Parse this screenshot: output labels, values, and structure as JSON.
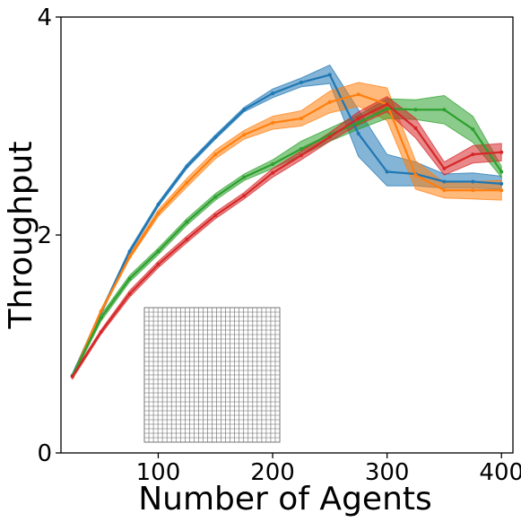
{
  "chart_data": {
    "type": "line",
    "title": "",
    "xlabel": "Number of Agents",
    "ylabel": "Throughput",
    "xlim": [
      15,
      410
    ],
    "ylim": [
      0,
      4
    ],
    "xticks": [
      100,
      200,
      300,
      400
    ],
    "yticks": [
      0,
      2,
      4
    ],
    "grid": false,
    "legend": "none",
    "x": [
      25,
      50,
      75,
      100,
      125,
      150,
      175,
      200,
      225,
      250,
      275,
      300,
      325,
      350,
      375,
      400
    ],
    "series": [
      {
        "color": "#1f77b4",
        "values": [
          0.71,
          1.29,
          1.85,
          2.28,
          2.63,
          2.9,
          3.15,
          3.3,
          3.4,
          3.47,
          2.93,
          2.58,
          2.56,
          2.49,
          2.49,
          2.47
        ],
        "lower": [
          0.69,
          1.27,
          1.83,
          2.26,
          2.61,
          2.88,
          3.13,
          3.26,
          3.36,
          3.39,
          2.72,
          2.45,
          2.45,
          2.43,
          2.43,
          2.42
        ],
        "upper": [
          0.73,
          1.31,
          1.87,
          2.3,
          2.65,
          2.92,
          3.17,
          3.34,
          3.44,
          3.56,
          3.15,
          2.74,
          2.67,
          2.56,
          2.57,
          2.54
        ]
      },
      {
        "color": "#ff7f0e",
        "values": [
          0.7,
          1.3,
          1.8,
          2.2,
          2.48,
          2.74,
          2.92,
          3.03,
          3.07,
          3.22,
          3.29,
          3.2,
          2.55,
          2.41,
          2.41,
          2.41
        ],
        "lower": [
          0.68,
          1.28,
          1.78,
          2.17,
          2.44,
          2.7,
          2.88,
          2.97,
          3.0,
          3.12,
          3.18,
          3.05,
          2.42,
          2.34,
          2.33,
          2.32
        ],
        "upper": [
          0.72,
          1.32,
          1.82,
          2.23,
          2.52,
          2.78,
          2.96,
          3.09,
          3.14,
          3.32,
          3.4,
          3.35,
          2.68,
          2.48,
          2.49,
          2.5
        ]
      },
      {
        "color": "#2ca02c",
        "values": [
          0.71,
          1.24,
          1.6,
          1.85,
          2.12,
          2.35,
          2.53,
          2.65,
          2.79,
          2.92,
          3.03,
          3.16,
          3.15,
          3.15,
          2.97,
          2.58
        ],
        "lower": [
          0.69,
          1.21,
          1.57,
          1.82,
          2.09,
          2.32,
          2.5,
          2.61,
          2.73,
          2.86,
          2.97,
          3.07,
          3.06,
          3.02,
          2.85,
          2.53
        ],
        "upper": [
          0.73,
          1.27,
          1.63,
          1.88,
          2.15,
          2.38,
          2.56,
          2.69,
          2.86,
          2.98,
          3.1,
          3.25,
          3.24,
          3.28,
          3.09,
          2.63
        ]
      },
      {
        "color": "#d62728",
        "values": [
          0.7,
          1.11,
          1.46,
          1.73,
          1.96,
          2.18,
          2.36,
          2.57,
          2.73,
          2.9,
          3.07,
          3.2,
          2.98,
          2.61,
          2.74,
          2.76
        ],
        "lower": [
          0.68,
          1.09,
          1.43,
          1.7,
          1.93,
          2.15,
          2.33,
          2.53,
          2.69,
          2.86,
          3.01,
          3.13,
          2.89,
          2.55,
          2.66,
          2.68
        ],
        "upper": [
          0.72,
          1.13,
          1.49,
          1.76,
          1.99,
          2.21,
          2.39,
          2.61,
          2.77,
          2.94,
          3.13,
          3.27,
          3.07,
          2.67,
          2.82,
          2.84
        ]
      }
    ],
    "inset": {
      "type": "grid-map",
      "rows": 30,
      "cols": 30
    }
  }
}
